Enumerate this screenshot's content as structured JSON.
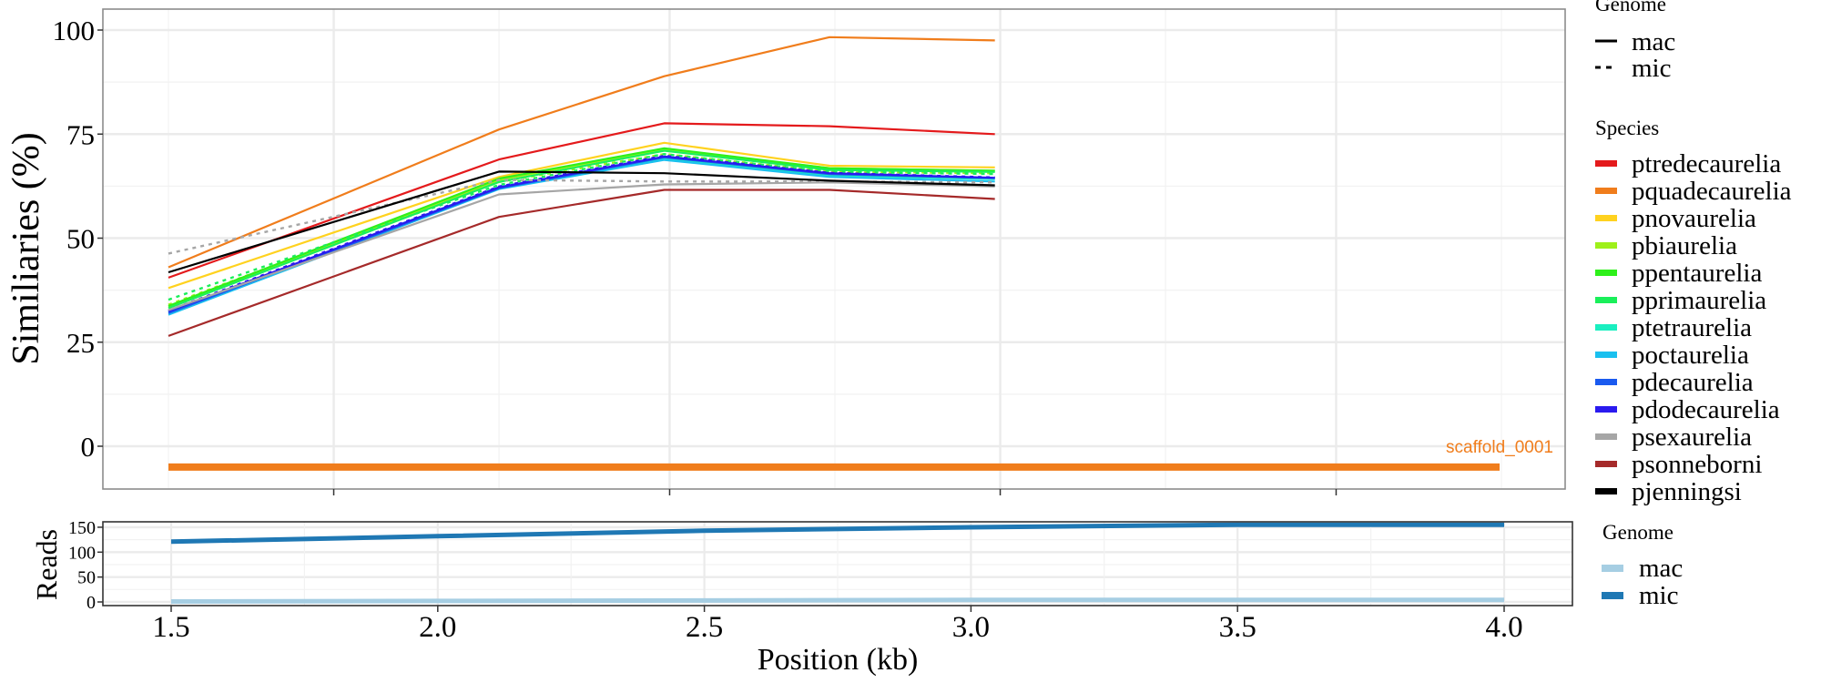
{
  "chart_data": [
    {
      "type": "line",
      "panel": "similarities",
      "title": "",
      "xlabel": "",
      "ylabel": "Similiaries (%)",
      "xlim": [
        1.37,
        4.11
      ],
      "ylim": [
        -8,
        105
      ],
      "y_ticks": [
        0,
        25,
        50,
        75,
        100
      ],
      "y_tick_labels": [
        "0",
        "25",
        "50",
        "75",
        "100"
      ],
      "y_minor_ticks": [
        12.5,
        37.5,
        62.5,
        87.5
      ],
      "x_ticks": [
        1.81,
        2.44,
        3.06,
        3.69
      ],
      "x_minor_ticks": [
        1.5,
        2.12,
        2.75,
        3.37,
        4.0
      ],
      "grid": true,
      "x": [
        1.5,
        2.12,
        2.43,
        2.74,
        3.05
      ],
      "series": [
        {
          "name": "ptredecaurelia",
          "genome": "mac",
          "color": "#e41a1c",
          "values": [
            40.5,
            68.9,
            77.6,
            76.9,
            75.0
          ]
        },
        {
          "name": "pquadecaurelia",
          "genome": "mac",
          "color": "#f07d1c",
          "values": [
            43.0,
            76.1,
            88.9,
            98.3,
            97.5
          ]
        },
        {
          "name": "pnovaurelia",
          "genome": "mac",
          "color": "#ffd21f",
          "values": [
            38.0,
            64.7,
            72.9,
            67.4,
            67.0
          ]
        },
        {
          "name": "pbiaurelia",
          "genome": "mac",
          "color": "#9ef01a",
          "values": [
            33.5,
            64.0,
            71.4,
            66.8,
            66.2
          ]
        },
        {
          "name": "pbiaurelia",
          "genome": "mic",
          "color": "#9ef01a",
          "values": [
            34.0,
            63.5,
            70.2,
            66.0,
            65.6
          ]
        },
        {
          "name": "ppentaurelia",
          "genome": "mac",
          "color": "#2ef01a",
          "values": [
            33.7,
            64.3,
            71.6,
            66.8,
            66.2
          ]
        },
        {
          "name": "pprimaurelia",
          "genome": "mac",
          "color": "#1aef5a",
          "values": [
            33.2,
            63.5,
            71.0,
            66.4,
            65.9
          ]
        },
        {
          "name": "pprimaurelia",
          "genome": "mic",
          "color": "#1aef5a",
          "values": [
            35.2,
            62.8,
            70.2,
            65.9,
            65.4
          ]
        },
        {
          "name": "ptetraurelia",
          "genome": "mac",
          "color": "#1aefc0",
          "values": [
            32.2,
            62.3,
            69.2,
            65.0,
            64.2
          ]
        },
        {
          "name": "poctaurelia",
          "genome": "mac",
          "color": "#1ac0ef",
          "values": [
            31.6,
            61.8,
            68.8,
            64.7,
            63.6
          ]
        },
        {
          "name": "pdecaurelia",
          "genome": "mac",
          "color": "#1a5aef",
          "values": [
            32.0,
            62.0,
            69.4,
            65.4,
            64.4
          ]
        },
        {
          "name": "pdodecaurelia",
          "genome": "mac",
          "color": "#2a1aef",
          "values": [
            32.4,
            62.2,
            69.6,
            65.6,
            64.5
          ]
        },
        {
          "name": "pdodecaurelia",
          "genome": "mic",
          "color": "#2a1aef",
          "values": [
            32.6,
            62.4,
            69.8,
            65.7,
            64.6
          ]
        },
        {
          "name": "psexaurelia",
          "genome": "mac",
          "color": "#a6a6a6",
          "values": [
            32.7,
            60.5,
            62.9,
            63.4,
            62.4
          ]
        },
        {
          "name": "psexaurelia",
          "genome": "mic",
          "color": "#a6a6a6",
          "values": [
            46.3,
            64.0,
            63.6,
            63.6,
            63.4
          ]
        },
        {
          "name": "psonneborni",
          "genome": "mac",
          "color": "#a52a2a",
          "values": [
            26.5,
            55.1,
            61.6,
            61.6,
            59.4
          ]
        },
        {
          "name": "pjenningsi",
          "genome": "mac",
          "color": "#000000",
          "values": [
            41.8,
            66.0,
            65.6,
            63.8,
            62.7
          ]
        }
      ],
      "segments": [
        {
          "label": "scaffold_0001",
          "color": "#f07d1c",
          "x_start": 1.5,
          "x_end": 4.0,
          "y": -5
        }
      ],
      "legends": [
        {
          "title": "Genome",
          "entries": [
            {
              "label": "mac",
              "linetype": "solid",
              "color": "#000000"
            },
            {
              "label": "mic",
              "linetype": "dashed",
              "color": "#000000"
            }
          ]
        },
        {
          "title": "Species",
          "entries": [
            {
              "label": "ptredecaurelia",
              "color": "#e41a1c"
            },
            {
              "label": "pquadecaurelia",
              "color": "#f07d1c"
            },
            {
              "label": "pnovaurelia",
              "color": "#ffd21f"
            },
            {
              "label": "pbiaurelia",
              "color": "#9ef01a"
            },
            {
              "label": "ppentaurelia",
              "color": "#2ef01a"
            },
            {
              "label": "pprimaurelia",
              "color": "#1aef5a"
            },
            {
              "label": "ptetraurelia",
              "color": "#1aefc0"
            },
            {
              "label": "poctaurelia",
              "color": "#1ac0ef"
            },
            {
              "label": "pdecaurelia",
              "color": "#1a5aef"
            },
            {
              "label": "pdodecaurelia",
              "color": "#2a1aef"
            },
            {
              "label": "psexaurelia",
              "color": "#a6a6a6"
            },
            {
              "label": "psonneborni",
              "color": "#a52a2a"
            },
            {
              "label": "pjenningsi",
              "color": "#000000"
            }
          ]
        }
      ],
      "legend_position": "right"
    },
    {
      "type": "line",
      "panel": "reads",
      "title": "",
      "xlabel": "Position (kb)",
      "ylabel": "Reads",
      "xlim": [
        1.37,
        4.13
      ],
      "ylim": [
        -5,
        162
      ],
      "x_ticks": [
        1.5,
        2.0,
        2.5,
        3.0,
        3.5,
        4.0
      ],
      "x_tick_labels": [
        "1.5",
        "2.0",
        "2.5",
        "3.0",
        "3.5",
        "4.0"
      ],
      "y_ticks": [
        0,
        50,
        100,
        150
      ],
      "y_tick_labels": [
        "0",
        "50",
        "100",
        "150"
      ],
      "y_minor_ticks": [
        25,
        75,
        125
      ],
      "grid": true,
      "x": [
        1.5,
        2.0,
        2.5,
        3.0,
        3.5,
        4.0
      ],
      "series": [
        {
          "name": "mac",
          "color": "#a6cee3",
          "values": [
            1,
            2,
            3,
            4,
            4,
            4
          ]
        },
        {
          "name": "mic",
          "color": "#1f78b4",
          "values": [
            121,
            132,
            143,
            150,
            155,
            155
          ]
        }
      ],
      "legends": [
        {
          "title": "Genome",
          "entries": [
            {
              "label": "mac",
              "color": "#a6cee3"
            },
            {
              "label": "mic",
              "color": "#1f78b4"
            }
          ]
        }
      ],
      "legend_position": "right"
    }
  ]
}
